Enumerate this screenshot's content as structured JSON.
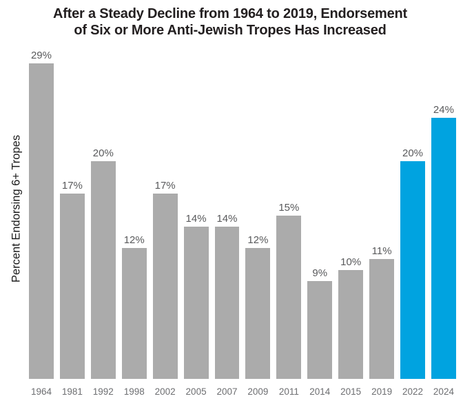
{
  "title_lines": {
    "line1": "After a Steady Decline from 1964 to 2019, Endorsement",
    "line2": "of Six or More Anti-Jewish Tropes Has Increased"
  },
  "chart_data": {
    "type": "bar",
    "title": "After a Steady Decline from 1964 to 2019, Endorsement of Six or More Anti-Jewish Tropes Has Increased",
    "ylabel": "Percent Endorsing 6+ Tropes",
    "xlabel": "",
    "categories": [
      "1964",
      "1981",
      "1992",
      "1998",
      "2002",
      "2005",
      "2007",
      "2009",
      "2011",
      "2014",
      "2015",
      "2019",
      "2022",
      "2024"
    ],
    "values": [
      29,
      17,
      20,
      12,
      17,
      14,
      14,
      12,
      15,
      9,
      10,
      11,
      20,
      24
    ],
    "data_labels": [
      "29%",
      "17%",
      "20%",
      "12%",
      "17%",
      "14%",
      "14%",
      "12%",
      "15%",
      "9%",
      "10%",
      "11%",
      "20%",
      "24%"
    ],
    "ylim": [
      0,
      30
    ],
    "grid": false,
    "legend": "none",
    "highlight_categories": [
      "2022",
      "2024"
    ],
    "colors": {
      "bar_default": "#ABABAB",
      "bar_highlight": "#00A3E0",
      "data_label": "#58595B",
      "tick_label": "#6D6E71",
      "title": "#231F20",
      "axis_label": "#1A1A1A"
    }
  }
}
